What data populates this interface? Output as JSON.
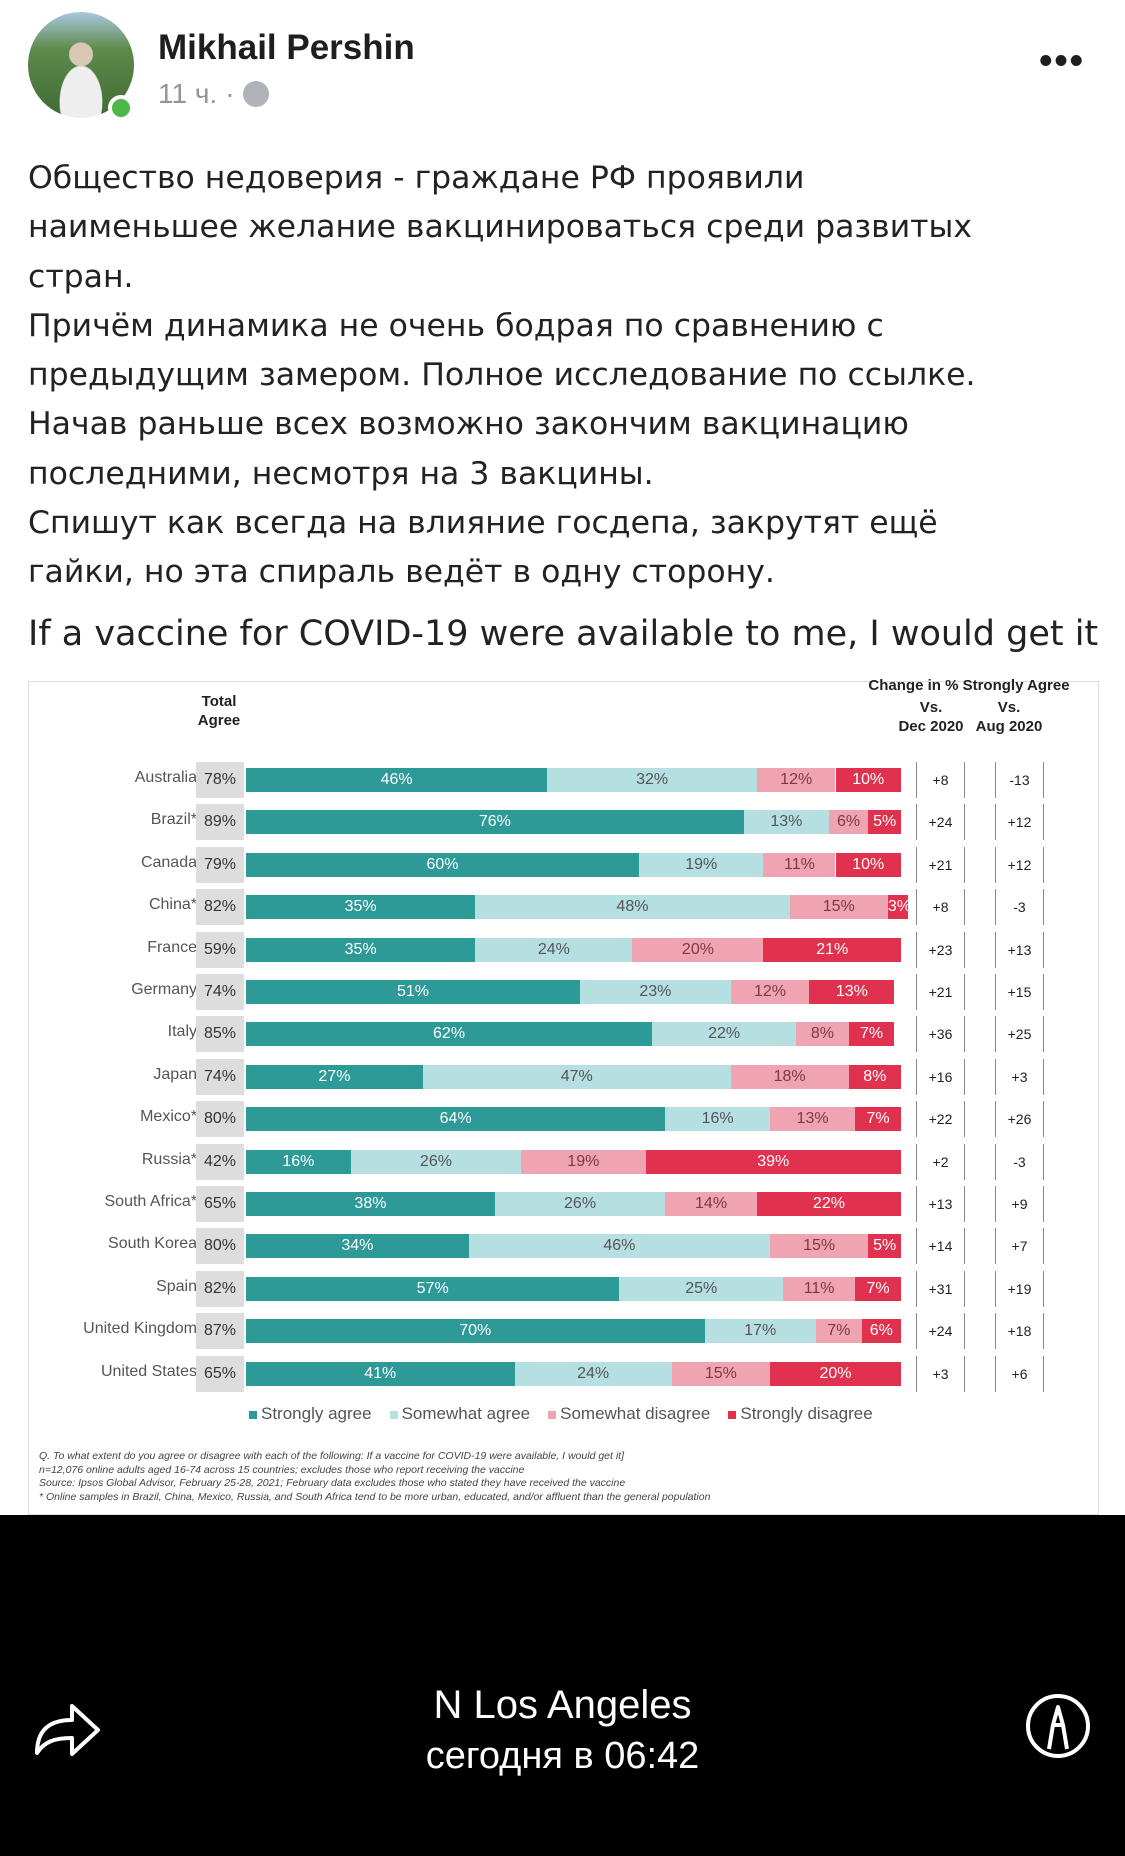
{
  "post": {
    "author": "Mikhail Pershin",
    "time": "11 ч.",
    "separator": "·",
    "more": "•••",
    "text": [
      "Общество недоверия - граждане РФ проявили",
      "наименьшее желание вакцинироваться среди развитых",
      "стран.",
      "Причём динамика не очень бодрая по сравнению с",
      "предыдущим замером. Полное исследование по ссылке.",
      "Начав раньше всех возможно закончим вакцинацию",
      "последними, несмотря на 3 вакцины.",
      "Спишут как всегда на влияние госдепа, закрутят ещё",
      "гайки, но эта спираль ведёт в одну сторону."
    ],
    "headline": "If a vaccine for COVID-19 were available to me, I would get it"
  },
  "chart_data": {
    "type": "bar",
    "stacked": true,
    "orientation": "horizontal",
    "total_header": [
      "Total",
      "Agree"
    ],
    "change_header": "Change in % Strongly Agree",
    "change_cols": [
      [
        "Vs.",
        "Dec 2020"
      ],
      [
        "Vs.",
        "Aug 2020"
      ]
    ],
    "categories": [
      "Australia",
      "Brazil*",
      "Canada",
      "China*",
      "France",
      "Germany",
      "Italy",
      "Japan",
      "Mexico*",
      "Russia*",
      "South Africa*",
      "South Korea",
      "Spain",
      "United Kingdom",
      "United States"
    ],
    "total_agree": [
      "78%",
      "89%",
      "79%",
      "82%",
      "59%",
      "74%",
      "85%",
      "74%",
      "80%",
      "42%",
      "65%",
      "80%",
      "82%",
      "87%",
      "65%"
    ],
    "series": [
      {
        "name": "Strongly agree",
        "color": "#2e9a98",
        "values": [
          46,
          76,
          60,
          35,
          35,
          51,
          62,
          27,
          64,
          16,
          38,
          34,
          57,
          70,
          41
        ]
      },
      {
        "name": "Somewhat agree",
        "color": "#b5dfe0",
        "values": [
          32,
          13,
          19,
          48,
          24,
          23,
          22,
          47,
          16,
          26,
          26,
          46,
          25,
          17,
          24
        ]
      },
      {
        "name": "Somewhat disagree",
        "color": "#f0a3b0",
        "values": [
          12,
          6,
          11,
          15,
          20,
          12,
          8,
          18,
          13,
          19,
          14,
          15,
          11,
          7,
          15
        ]
      },
      {
        "name": "Strongly disagree",
        "color": "#e0314f",
        "values": [
          10,
          5,
          10,
          3,
          21,
          13,
          7,
          8,
          7,
          39,
          22,
          5,
          7,
          6,
          20
        ]
      }
    ],
    "change_vs_dec2020": [
      "+8",
      "+24",
      "+21",
      "+8",
      "+23",
      "+21",
      "+36",
      "+16",
      "+22",
      "+2",
      "+13",
      "+14",
      "+31",
      "+24",
      "+3"
    ],
    "change_vs_aug2020": [
      "-13",
      "+12",
      "+12",
      "-3",
      "+13",
      "+15",
      "+25",
      "+3",
      "+26",
      "-3",
      "+9",
      "+7",
      "+19",
      "+18",
      "+6"
    ],
    "notes": [
      "Q. To what extent do you agree or disagree with each of the following: If a vaccine for COVID-19 were available, I would get it]",
      "n=12,076 online adults aged 16-74 across 15 countries; excludes those who report receiving the vaccine",
      "Source: Ipsos Global Advisor, February 25-28, 2021; February data excludes those who stated they have received the vaccine",
      "* Online samples in Brazil, China, Mexico, Russia, and South Africa tend to be more urban, educated, and/or affluent than the general population"
    ]
  },
  "viewer": {
    "location": "N Los Angeles",
    "time": "сегодня в 06:42"
  }
}
